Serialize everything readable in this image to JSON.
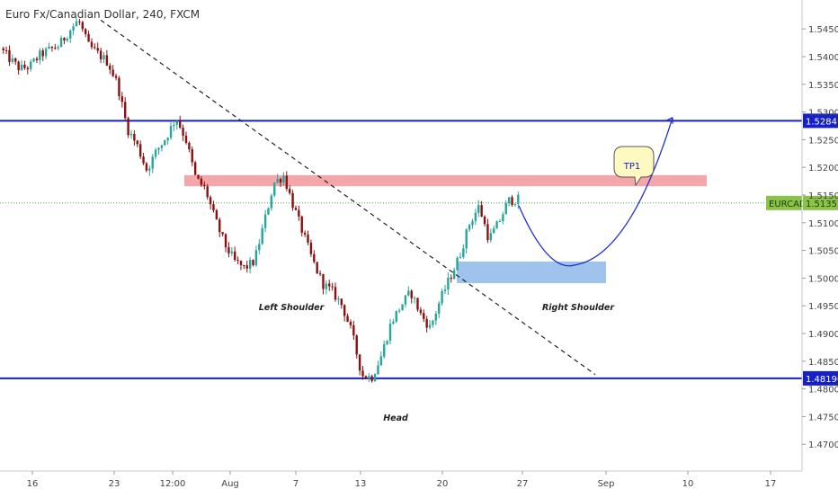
{
  "header": {
    "title": "Euro Fx/Canadian Dollar, 240, FXCM"
  },
  "colors": {
    "background": "#ffffff",
    "bull_candle": "#26a69a",
    "bear_candle": "#8b1010",
    "support_resistance_line": "#1620c8",
    "resistance_zone": "#f4a6aa",
    "neckline_zone": "#9fc3ec",
    "projection_curve": "#1e2fd0",
    "last_price_badge": "#8bc34a",
    "level_badge": "#1620c8",
    "axis_text": "#444444"
  },
  "chart_data": {
    "type": "candlestick",
    "symbol_badge": "EURCAD",
    "price_axis": {
      "ticks": [
        "1.54500",
        "1.54000",
        "1.53500",
        "1.53000",
        "1.52500",
        "1.52000",
        "1.51500",
        "1.51000",
        "1.50500",
        "1.50000",
        "1.49500",
        "1.49000",
        "1.48500",
        "1.48000",
        "1.47500",
        "1.47000"
      ],
      "range": [
        1.4695,
        1.5495
      ]
    },
    "time_axis": {
      "ticks": [
        "16",
        "23",
        "12:00",
        "Aug",
        "7",
        "13",
        "20",
        "27",
        "Sep",
        "10",
        "17"
      ]
    },
    "horizontal_levels": [
      {
        "value": 1.52841,
        "label": "1.52841"
      },
      {
        "value": 1.4819,
        "label": "1.48190"
      }
    ],
    "last_price": {
      "value": 1.51357,
      "label": "1.51357"
    },
    "zones": [
      {
        "name": "resistance",
        "from": 1.5166,
        "to": 1.5186
      },
      {
        "name": "right-shoulder-support",
        "from": 1.4991,
        "to": 1.503
      }
    ],
    "annotations": [
      {
        "text": "Left Shoulder"
      },
      {
        "text": "Head"
      },
      {
        "text": "Right Shoulder"
      },
      {
        "text": "TP1"
      }
    ],
    "trendline": {
      "style": "dashed",
      "from_price": 1.5466,
      "to_price": 1.4826
    },
    "projection_curve": {
      "from_price": 1.5131,
      "trough_price": 1.5024,
      "to_price": 1.529
    },
    "price_path": [
      1.5415,
      1.5395,
      1.5378,
      1.5382,
      1.5402,
      1.5412,
      1.542,
      1.5445,
      1.5466,
      1.542,
      1.5405,
      1.539,
      1.535,
      1.527,
      1.524,
      1.5195,
      1.523,
      1.5255,
      1.529,
      1.525,
      1.518,
      1.516,
      1.5105,
      1.506,
      1.503,
      1.5018,
      1.503,
      1.51,
      1.5172,
      1.5185,
      1.513,
      1.508,
      1.503,
      1.499,
      1.4975,
      1.495,
      1.49,
      1.4825,
      1.482,
      1.486,
      1.492,
      1.495,
      1.4975,
      1.4935,
      1.491,
      1.496,
      1.5,
      1.504,
      1.5098,
      1.513,
      1.507,
      1.51,
      1.514,
      1.5142
    ]
  }
}
